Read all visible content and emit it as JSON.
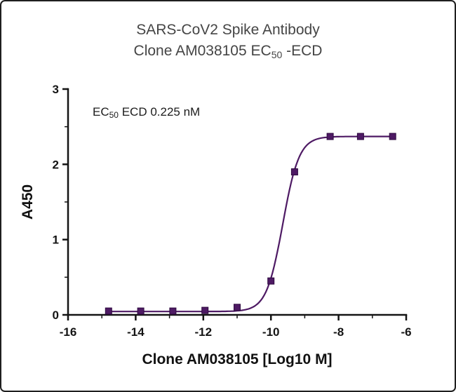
{
  "title": {
    "line1": "SARS-CoV2 Spike Antibody",
    "line2_pre": "Clone AM038105 EC",
    "line2_sub": "50",
    "line2_post": " -ECD"
  },
  "annotation": {
    "pre": "EC",
    "sub": "50",
    "post": " ECD 0.225 nM"
  },
  "chart_data": {
    "type": "scatter",
    "title": "SARS-CoV2 Spike Antibody Clone AM038105 EC50 -ECD",
    "xlabel": "Clone AM038105 [Log10 M]",
    "ylabel": "A450",
    "xlim": [
      -16,
      -6
    ],
    "ylim": [
      0,
      3
    ],
    "xticks": [
      -16,
      -14,
      -12,
      -10,
      -8,
      -6
    ],
    "xticks_minor": [
      -15,
      -13,
      -11,
      -9,
      -7
    ],
    "yticks": [
      0,
      1,
      2,
      3
    ],
    "yticks_minor": [
      0.5,
      1.5,
      2.5
    ],
    "grid": false,
    "legend": "none",
    "annotation": "EC50 ECD 0.225 nM",
    "ec50_nM": 0.225,
    "marker": "square",
    "marker_color": "#4e1a64",
    "marker_edge_color": "#2e0b3f",
    "line_color": "#4e1a64",
    "axis_color": "#141414",
    "x": [
      -14.8,
      -13.85,
      -12.9,
      -11.95,
      -11.0,
      -10.0,
      -9.3,
      -8.25,
      -7.35,
      -6.4
    ],
    "y": [
      0.05,
      0.05,
      0.05,
      0.06,
      0.1,
      0.45,
      1.9,
      2.37,
      2.37,
      2.37
    ],
    "fit": {
      "model": "4PL sigmoid",
      "bottom": 0.045,
      "top": 2.37,
      "logEC50": -9.65,
      "hill": 1.8
    }
  }
}
